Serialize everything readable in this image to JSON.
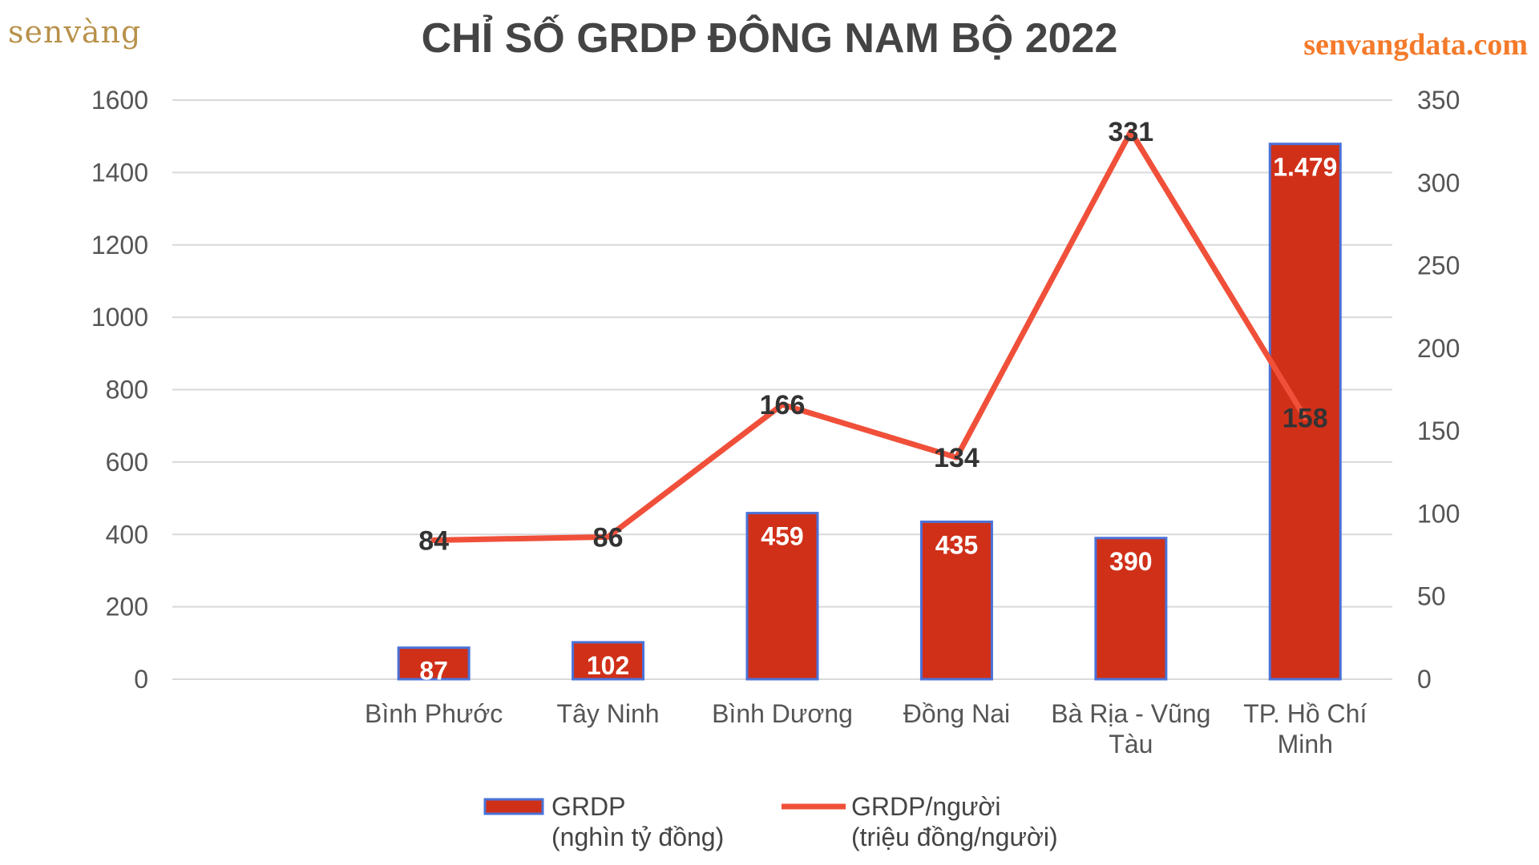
{
  "brand": {
    "logo_text": "senvàng",
    "site": "senvangdata.com"
  },
  "chart_data": {
    "type": "bar",
    "title": "CHỈ SỐ GRDP ĐÔNG NAM BỘ 2022",
    "categories": [
      "Bình Phước",
      "Tây Ninh",
      "Bình Dương",
      "Đồng Nai",
      "Bà Rịa - Vũng Tàu",
      "TP. Hồ Chí Minh"
    ],
    "category_lines": [
      [
        "Bình Phước"
      ],
      [
        "Tây Ninh"
      ],
      [
        "Bình Dương"
      ],
      [
        "Đồng Nai"
      ],
      [
        "Bà Rịa - Vũng",
        "Tàu"
      ],
      [
        "TP. Hồ Chí",
        "Minh"
      ]
    ],
    "series": [
      {
        "name": "GRDP (nghìn tỷ đồng)",
        "legend_lines": [
          "GRDP",
          "(nghìn tỷ đồng)"
        ],
        "type": "bar",
        "axis": "left",
        "values": [
          87,
          102,
          459,
          435,
          390,
          1479
        ],
        "labels": [
          "87",
          "102",
          "459",
          "435",
          "390",
          "1.479"
        ],
        "color": "#d03018",
        "edge_color": "#4a72d8"
      },
      {
        "name": "GRDP/người (triệu đồng/người)",
        "legend_lines": [
          "GRDP/người",
          "(triệu đồng/người)"
        ],
        "type": "line",
        "axis": "right",
        "values": [
          84,
          86,
          166,
          134,
          331,
          158
        ],
        "labels": [
          "84",
          "86",
          "166",
          "134",
          "331",
          "158"
        ],
        "color": "#f0503a"
      }
    ],
    "left_axis": {
      "min": 0,
      "max": 1600,
      "ticks": [
        "0",
        "200",
        "400",
        "600",
        "800",
        "1000",
        "1200",
        "1400",
        "1600"
      ]
    },
    "right_axis": {
      "min": 0,
      "max": 350,
      "ticks": [
        "0",
        "50",
        "100",
        "150",
        "200",
        "250",
        "300",
        "350"
      ]
    },
    "grid": true,
    "legend_position": "bottom"
  }
}
